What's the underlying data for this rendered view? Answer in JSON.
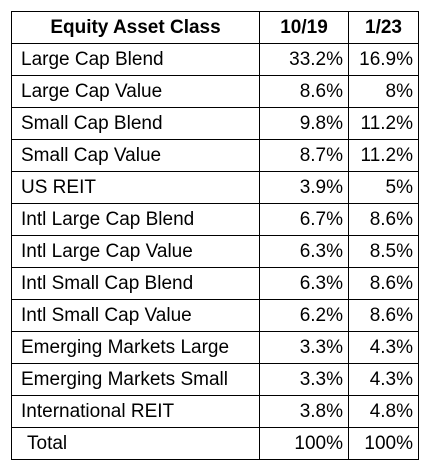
{
  "table": {
    "headers": [
      "Equity Asset Class",
      "10/19",
      "1/23"
    ],
    "rows": [
      [
        "Large Cap Blend",
        "33.2%",
        "16.9%"
      ],
      [
        "Large Cap Value",
        "8.6%",
        "8%"
      ],
      [
        "Small Cap Blend",
        "9.8%",
        "11.2%"
      ],
      [
        "Small Cap Value",
        "8.7%",
        "11.2%"
      ],
      [
        "US REIT",
        "3.9%",
        "5%"
      ],
      [
        "Intl Large Cap Blend",
        "6.7%",
        "8.6%"
      ],
      [
        "Intl Large Cap Value",
        "6.3%",
        "8.5%"
      ],
      [
        "Intl Small Cap Blend",
        "6.3%",
        "8.6%"
      ],
      [
        "Intl Small Cap Value",
        "6.2%",
        "8.6%"
      ],
      [
        "Emerging Markets Large",
        "3.3%",
        "4.3%"
      ],
      [
        "Emerging Markets Small",
        "3.3%",
        "4.3%"
      ],
      [
        "International REIT",
        "3.8%",
        "4.8%"
      ],
      [
        "Total",
        "100%",
        "100%"
      ]
    ]
  }
}
